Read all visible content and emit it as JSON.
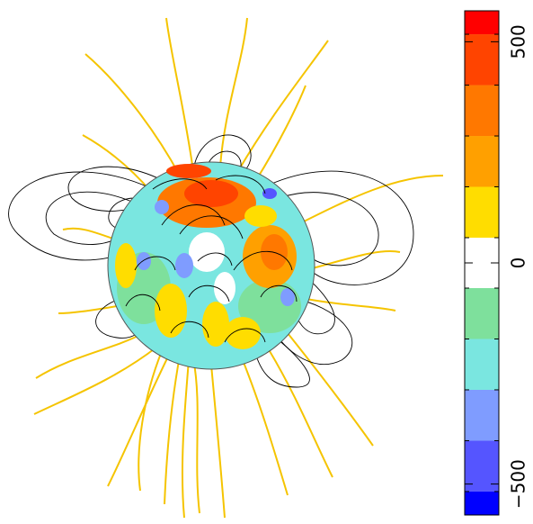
{
  "chart_data": {
    "type": "colorbar",
    "bins": [
      -570,
      -517,
      -402,
      -287,
      -172,
      -57,
      57,
      172,
      287,
      402,
      517,
      570
    ],
    "colors": [
      "#0000ff",
      "#5555ff",
      "#7f9cff",
      "#7ae6e0",
      "#7ee09c",
      "#ffffff",
      "#ffdd00",
      "#ffa000",
      "#ff7800",
      "#ff4400",
      "#ff0000"
    ],
    "ylim": [
      -570,
      570
    ],
    "yticks": [
      {
        "value": -500,
        "label": "−500"
      },
      0,
      500
    ]
  }
}
